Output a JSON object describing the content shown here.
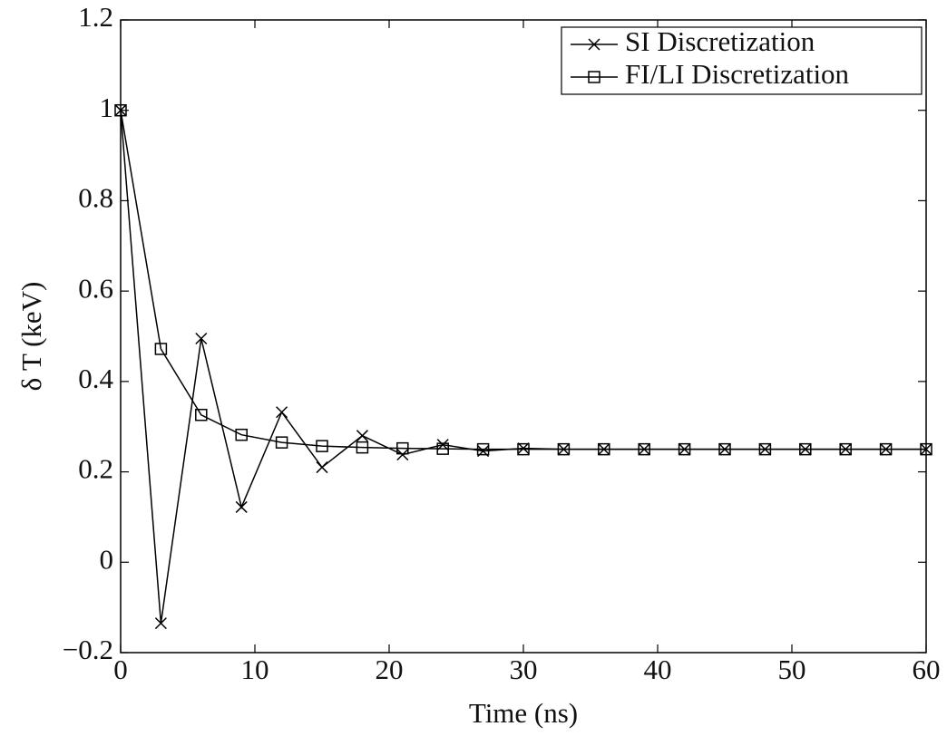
{
  "chart_data": {
    "type": "line",
    "x_label": "Time (ns)",
    "y_label": "δ T (keV)",
    "x": [
      0,
      3,
      6,
      9,
      12,
      15,
      18,
      21,
      24,
      27,
      30,
      33,
      36,
      39,
      42,
      45,
      48,
      51,
      54,
      57,
      60
    ],
    "series": [
      {
        "name": "SI Discretization",
        "color": "#000000",
        "marker": "x",
        "values": [
          1.0,
          -0.135,
          0.495,
          0.122,
          0.332,
          0.21,
          0.28,
          0.238,
          0.26,
          0.246,
          0.252,
          0.25,
          0.25,
          0.25,
          0.25,
          0.25,
          0.25,
          0.25,
          0.25,
          0.25,
          0.25
        ]
      },
      {
        "name": "FI/LI Discretization",
        "color": "#000000",
        "marker": "square",
        "values": [
          1.0,
          0.472,
          0.326,
          0.282,
          0.265,
          0.257,
          0.254,
          0.252,
          0.251,
          0.25,
          0.25,
          0.25,
          0.25,
          0.25,
          0.25,
          0.25,
          0.25,
          0.25,
          0.25,
          0.25,
          0.25
        ]
      }
    ],
    "xlim": [
      0,
      60
    ],
    "xticks": [
      0,
      10,
      20,
      30,
      40,
      50,
      60
    ],
    "ylim": [
      -0.2,
      1.2
    ],
    "yticks": [
      {
        "value": -0.2,
        "label": "−0.2"
      },
      0,
      0.2,
      0.4,
      0.6,
      0.8,
      1,
      1.2
    ],
    "grid": false,
    "legend": "upper right"
  }
}
